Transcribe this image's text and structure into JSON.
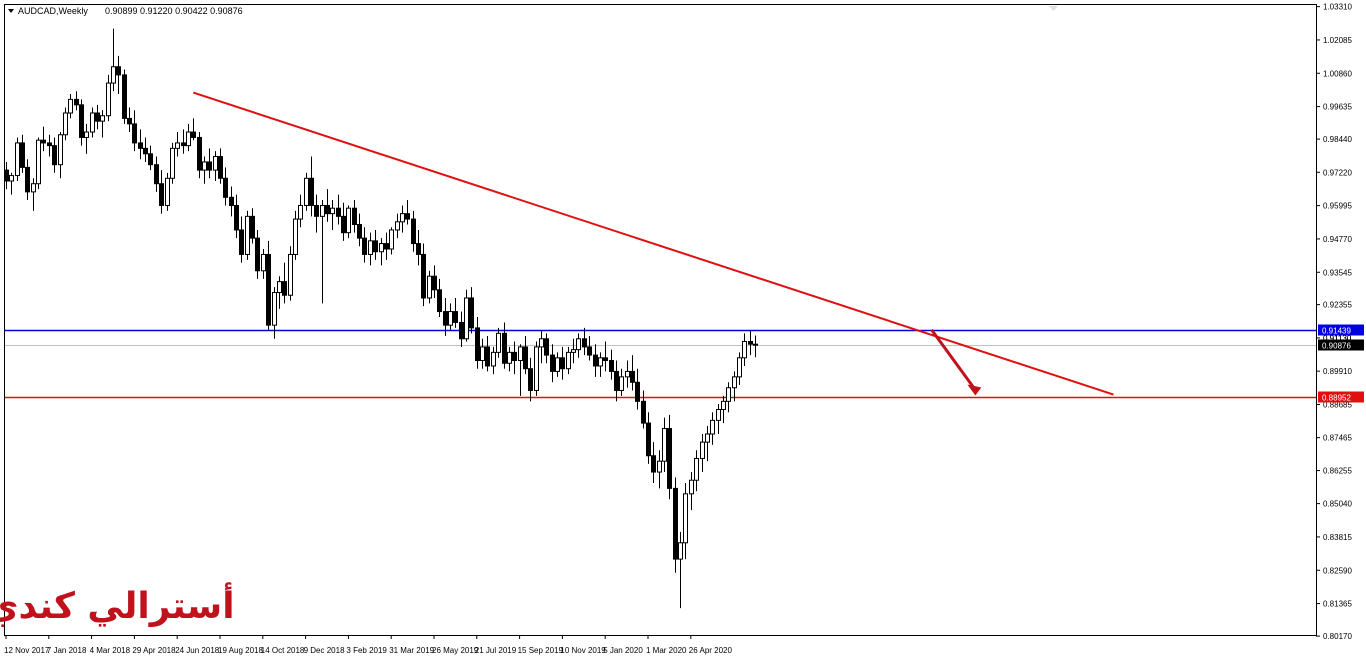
{
  "header": {
    "symbol": "AUDCAD,Weekly",
    "ohlc": "0.90899 0.91220 0.90422 0.90876"
  },
  "watermark": "أسترالي كندي",
  "colors": {
    "bull_body": "#ffffff",
    "bear_body": "#000000",
    "candle_outline": "#000000",
    "trendline": "#e01010",
    "resistance_line": "#0000e0",
    "support_line": "#e01010",
    "current_price_line": "#c0c0c0",
    "arrow": "#c0121c"
  },
  "chart_data": {
    "type": "candlestick",
    "symbol": "AUDCAD",
    "timeframe": "Weekly",
    "ylim": [
      0.8021,
      1.0337
    ],
    "y_ticks": [
      "1.03310",
      "1.02085",
      "1.00860",
      "0.99635",
      "0.98440",
      "0.97220",
      "0.95995",
      "0.94770",
      "0.93545",
      "0.92355",
      "0.91130",
      "0.89910",
      "0.88685",
      "0.87465",
      "0.86255",
      "0.85040",
      "0.83815",
      "0.82590",
      "0.81365",
      "0.80170"
    ],
    "x_ticks": [
      "12 Nov 2017",
      "7 Jan 2018",
      "4 Mar 2018",
      "29 Apr 2018",
      "24 Jun 2018",
      "19 Aug 2018",
      "14 Oct 2018",
      "9 Dec 2018",
      "3 Feb 2019",
      "31 Mar 2019",
      "26 May 2019",
      "21 Jul 2019",
      "15 Sep 2019",
      "10 Nov 2019",
      "5 Jan 2020",
      "1 Mar 2020",
      "26 Apr 2020"
    ],
    "levels": [
      {
        "name": "resistance",
        "value": 0.91439,
        "label": "0.91439",
        "color": "#0000e0"
      },
      {
        "name": "current",
        "value": 0.90876,
        "label": "0.90876",
        "color": "#000000"
      },
      {
        "name": "support",
        "value": 0.88952,
        "label": "0.88952",
        "color": "#e01010"
      }
    ],
    "hidden_tick_label": "0.91130",
    "trendline": {
      "from": {
        "bar": 35,
        "price": 1.0015
      },
      "to": {
        "bar": 207,
        "price": 0.8905
      }
    },
    "arrow": {
      "from": {
        "bar": 173,
        "price": 0.9143
      },
      "to": {
        "bar": 181,
        "price": 0.8905
      }
    },
    "candles": [
      [
        0.973,
        0.976,
        0.966,
        0.969
      ],
      [
        0.969,
        0.972,
        0.964,
        0.971
      ],
      [
        0.971,
        0.985,
        0.969,
        0.983
      ],
      [
        0.983,
        0.986,
        0.972,
        0.974
      ],
      [
        0.974,
        0.977,
        0.962,
        0.965
      ],
      [
        0.965,
        0.97,
        0.958,
        0.968
      ],
      [
        0.968,
        0.985,
        0.966,
        0.984
      ],
      [
        0.984,
        0.989,
        0.98,
        0.983
      ],
      [
        0.983,
        0.986,
        0.978,
        0.982
      ],
      [
        0.982,
        0.985,
        0.972,
        0.975
      ],
      [
        0.975,
        0.987,
        0.97,
        0.986
      ],
      [
        0.986,
        0.996,
        0.984,
        0.994
      ],
      [
        0.994,
        1.001,
        0.992,
        0.999
      ],
      [
        0.999,
        1.002,
        0.995,
        0.997
      ],
      [
        0.997,
        0.999,
        0.982,
        0.985
      ],
      [
        0.985,
        0.99,
        0.979,
        0.987
      ],
      [
        0.987,
        0.996,
        0.985,
        0.994
      ],
      [
        0.994,
        0.997,
        0.988,
        0.991
      ],
      [
        0.991,
        0.995,
        0.985,
        0.993
      ],
      [
        0.993,
        1.008,
        0.991,
        1.005
      ],
      [
        1.005,
        1.025,
        1.002,
        1.011
      ],
      [
        1.011,
        1.015,
        1.001,
        1.008
      ],
      [
        1.008,
        1.01,
        0.99,
        0.992
      ],
      [
        0.992,
        0.996,
        0.987,
        0.99
      ],
      [
        0.99,
        0.995,
        0.98,
        0.983
      ],
      [
        0.983,
        0.988,
        0.977,
        0.981
      ],
      [
        0.981,
        0.985,
        0.976,
        0.979
      ],
      [
        0.979,
        0.982,
        0.973,
        0.975
      ],
      [
        0.975,
        0.978,
        0.965,
        0.968
      ],
      [
        0.968,
        0.973,
        0.957,
        0.96
      ],
      [
        0.96,
        0.972,
        0.958,
        0.97
      ],
      [
        0.97,
        0.983,
        0.968,
        0.981
      ],
      [
        0.981,
        0.987,
        0.978,
        0.983
      ],
      [
        0.983,
        0.988,
        0.979,
        0.982
      ],
      [
        0.982,
        0.99,
        0.98,
        0.987
      ],
      [
        0.987,
        0.992,
        0.984,
        0.985
      ],
      [
        0.985,
        0.987,
        0.97,
        0.973
      ],
      [
        0.973,
        0.978,
        0.968,
        0.976
      ],
      [
        0.976,
        0.981,
        0.97,
        0.973
      ],
      [
        0.973,
        0.98,
        0.969,
        0.978
      ],
      [
        0.978,
        0.981,
        0.968,
        0.97
      ],
      [
        0.97,
        0.974,
        0.96,
        0.963
      ],
      [
        0.963,
        0.967,
        0.956,
        0.96
      ],
      [
        0.96,
        0.964,
        0.948,
        0.951
      ],
      [
        0.951,
        0.956,
        0.939,
        0.942
      ],
      [
        0.942,
        0.958,
        0.94,
        0.956
      ],
      [
        0.956,
        0.959,
        0.946,
        0.948
      ],
      [
        0.948,
        0.951,
        0.933,
        0.936
      ],
      [
        0.936,
        0.944,
        0.933,
        0.942
      ],
      [
        0.942,
        0.947,
        0.914,
        0.916
      ],
      [
        0.916,
        0.93,
        0.911,
        0.928
      ],
      [
        0.928,
        0.934,
        0.922,
        0.932
      ],
      [
        0.932,
        0.939,
        0.924,
        0.927
      ],
      [
        0.927,
        0.945,
        0.925,
        0.942
      ],
      [
        0.942,
        0.958,
        0.94,
        0.955
      ],
      [
        0.955,
        0.964,
        0.952,
        0.96
      ],
      [
        0.96,
        0.972,
        0.958,
        0.97
      ],
      [
        0.97,
        0.978,
        0.956,
        0.96
      ],
      [
        0.96,
        0.964,
        0.95,
        0.956
      ],
      [
        0.956,
        0.962,
        0.924,
        0.96
      ],
      [
        0.96,
        0.966,
        0.954,
        0.957
      ],
      [
        0.957,
        0.962,
        0.951,
        0.959
      ],
      [
        0.959,
        0.964,
        0.953,
        0.956
      ],
      [
        0.956,
        0.961,
        0.947,
        0.95
      ],
      [
        0.95,
        0.96,
        0.948,
        0.959
      ],
      [
        0.959,
        0.962,
        0.95,
        0.953
      ],
      [
        0.953,
        0.957,
        0.945,
        0.948
      ],
      [
        0.948,
        0.952,
        0.939,
        0.942
      ],
      [
        0.942,
        0.95,
        0.938,
        0.947
      ],
      [
        0.947,
        0.951,
        0.94,
        0.943
      ],
      [
        0.943,
        0.948,
        0.938,
        0.946
      ],
      [
        0.946,
        0.95,
        0.94,
        0.944
      ],
      [
        0.944,
        0.952,
        0.942,
        0.951
      ],
      [
        0.951,
        0.957,
        0.948,
        0.954
      ],
      [
        0.954,
        0.96,
        0.95,
        0.957
      ],
      [
        0.957,
        0.962,
        0.953,
        0.955
      ],
      [
        0.955,
        0.958,
        0.943,
        0.946
      ],
      [
        0.946,
        0.951,
        0.938,
        0.942
      ],
      [
        0.942,
        0.946,
        0.923,
        0.926
      ],
      [
        0.926,
        0.936,
        0.924,
        0.934
      ],
      [
        0.934,
        0.938,
        0.926,
        0.929
      ],
      [
        0.929,
        0.933,
        0.919,
        0.921
      ],
      [
        0.921,
        0.926,
        0.912,
        0.916
      ],
      [
        0.916,
        0.924,
        0.914,
        0.921
      ],
      [
        0.921,
        0.926,
        0.915,
        0.917
      ],
      [
        0.917,
        0.921,
        0.908,
        0.911
      ],
      [
        0.911,
        0.929,
        0.91,
        0.926
      ],
      [
        0.926,
        0.93,
        0.913,
        0.915
      ],
      [
        0.915,
        0.919,
        0.9,
        0.903
      ],
      [
        0.903,
        0.911,
        0.9,
        0.908
      ],
      [
        0.908,
        0.912,
        0.899,
        0.901
      ],
      [
        0.901,
        0.908,
        0.898,
        0.906
      ],
      [
        0.906,
        0.915,
        0.904,
        0.913
      ],
      [
        0.913,
        0.917,
        0.9,
        0.902
      ],
      [
        0.902,
        0.908,
        0.899,
        0.906
      ],
      [
        0.906,
        0.91,
        0.898,
        0.903
      ],
      [
        0.903,
        0.909,
        0.89,
        0.908
      ],
      [
        0.908,
        0.912,
        0.898,
        0.9
      ],
      [
        0.9,
        0.904,
        0.888,
        0.892
      ],
      [
        0.892,
        0.91,
        0.89,
        0.908
      ],
      [
        0.908,
        0.914,
        0.902,
        0.911
      ],
      [
        0.911,
        0.913,
        0.902,
        0.905
      ],
      [
        0.905,
        0.909,
        0.895,
        0.899
      ],
      [
        0.899,
        0.906,
        0.897,
        0.904
      ],
      [
        0.904,
        0.908,
        0.896,
        0.9
      ],
      [
        0.9,
        0.908,
        0.898,
        0.906
      ],
      [
        0.906,
        0.911,
        0.902,
        0.907
      ],
      [
        0.907,
        0.913,
        0.904,
        0.911
      ],
      [
        0.911,
        0.915,
        0.905,
        0.908
      ],
      [
        0.908,
        0.912,
        0.903,
        0.905
      ],
      [
        0.905,
        0.909,
        0.897,
        0.901
      ],
      [
        0.901,
        0.906,
        0.897,
        0.904
      ],
      [
        0.904,
        0.91,
        0.899,
        0.903
      ],
      [
        0.903,
        0.907,
        0.896,
        0.899
      ],
      [
        0.899,
        0.903,
        0.888,
        0.892
      ],
      [
        0.892,
        0.9,
        0.89,
        0.897
      ],
      [
        0.897,
        0.903,
        0.893,
        0.899
      ],
      [
        0.899,
        0.905,
        0.892,
        0.895
      ],
      [
        0.895,
        0.9,
        0.885,
        0.888
      ],
      [
        0.888,
        0.892,
        0.878,
        0.88
      ],
      [
        0.88,
        0.884,
        0.865,
        0.868
      ],
      [
        0.868,
        0.873,
        0.858,
        0.862
      ],
      [
        0.862,
        0.87,
        0.856,
        0.866
      ],
      [
        0.866,
        0.882,
        0.862,
        0.878
      ],
      [
        0.878,
        0.883,
        0.852,
        0.856
      ],
      [
        0.856,
        0.86,
        0.825,
        0.83
      ],
      [
        0.83,
        0.84,
        0.812,
        0.836
      ],
      [
        0.836,
        0.858,
        0.83,
        0.854
      ],
      [
        0.854,
        0.862,
        0.848,
        0.859
      ],
      [
        0.859,
        0.87,
        0.855,
        0.867
      ],
      [
        0.867,
        0.876,
        0.862,
        0.873
      ],
      [
        0.873,
        0.879,
        0.866,
        0.876
      ],
      [
        0.876,
        0.884,
        0.872,
        0.881
      ],
      [
        0.881,
        0.887,
        0.876,
        0.885
      ],
      [
        0.885,
        0.89,
        0.88,
        0.888
      ],
      [
        0.888,
        0.895,
        0.884,
        0.893
      ],
      [
        0.893,
        0.899,
        0.888,
        0.897
      ],
      [
        0.897,
        0.906,
        0.894,
        0.904
      ],
      [
        0.904,
        0.913,
        0.901,
        0.91
      ],
      [
        0.91,
        0.914,
        0.905,
        0.909
      ],
      [
        0.909,
        0.9122,
        0.9042,
        0.9088
      ]
    ]
  }
}
